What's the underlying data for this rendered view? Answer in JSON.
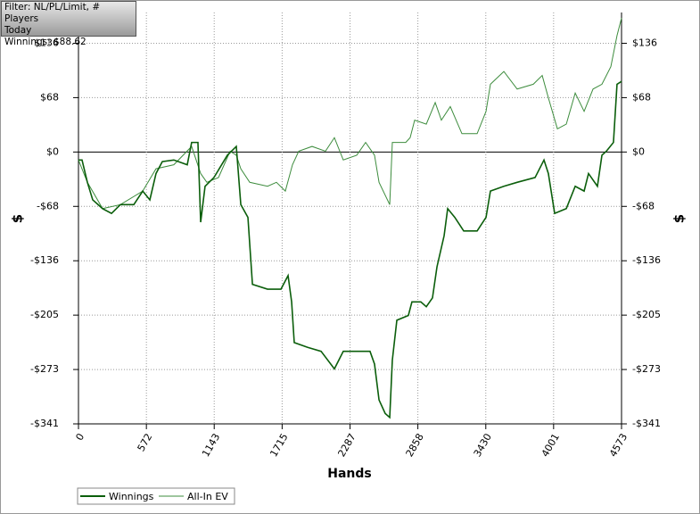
{
  "info": {
    "filter": "Filter: NL/PL/Limit, # Players",
    "period": "Today",
    "winnings": "Winnings: $88.62"
  },
  "chart_data": {
    "type": "line",
    "xlabel": "Hands",
    "ylabel": "$",
    "y2label": "$",
    "xlim": [
      0,
      4573
    ],
    "ylim": [
      -341,
      175
    ],
    "xticks": [
      0,
      572,
      1143,
      1715,
      2287,
      2858,
      3430,
      4001,
      4573
    ],
    "yticks": [
      {
        "value": 136.4,
        "label": "$136"
      },
      {
        "value": 68.2,
        "label": "$68"
      },
      {
        "value": 0,
        "label": "$0"
      },
      {
        "value": -68.2,
        "label": "-$68"
      },
      {
        "value": -136.4,
        "label": "-$136"
      },
      {
        "value": -204.6,
        "label": "-$205"
      },
      {
        "value": -272.8,
        "label": "-$273"
      },
      {
        "value": -341,
        "label": "-$341"
      }
    ],
    "grid": true,
    "series": [
      {
        "name": "Winnings",
        "color": "#0b5e0b",
        "x": [
          0,
          30,
          75,
          120,
          203,
          278,
          353,
          466,
          541,
          601,
          653,
          706,
          803,
          916,
          953,
          1006,
          1029,
          1066,
          1141,
          1254,
          1329,
          1367,
          1427,
          1465,
          1592,
          1705,
          1765,
          1795,
          1817,
          1930,
          2043,
          2155,
          2230,
          2343,
          2455,
          2493,
          2531,
          2583,
          2621,
          2643,
          2681,
          2778,
          2808,
          2883,
          2929,
          2981,
          3019,
          3079,
          3109,
          3169,
          3244,
          3357,
          3432,
          3469,
          3582,
          3694,
          3845,
          3920,
          3957,
          4010,
          4108,
          4183,
          4258,
          4295,
          4370,
          4408,
          4445,
          4505,
          4535,
          4573
        ],
        "values": [
          -10,
          -10,
          -38,
          -60,
          -71,
          -77,
          -66,
          -66,
          -49,
          -60,
          -27,
          -12,
          -10,
          -16,
          12,
          12,
          -88,
          -43,
          -32,
          -4,
          7,
          -66,
          -82,
          -166,
          -172,
          -172,
          -155,
          -188,
          -239,
          -245,
          -250,
          -272,
          -250,
          -250,
          -250,
          -266,
          -311,
          -328,
          -333,
          -261,
          -211,
          -205,
          -188,
          -188,
          -194,
          -183,
          -144,
          -105,
          -71,
          -82,
          -99,
          -99,
          -82,
          -49,
          -43,
          -38,
          -32,
          -10,
          -27,
          -77,
          -71,
          -43,
          -49,
          -27,
          -43,
          -4,
          1,
          12,
          85,
          88.62
        ]
      },
      {
        "name": "All-In EV",
        "color": "#3d8c3d",
        "x": [
          0,
          75,
          203,
          353,
          541,
          653,
          803,
          953,
          1029,
          1081,
          1179,
          1277,
          1329,
          1367,
          1442,
          1592,
          1667,
          1742,
          1802,
          1855,
          1967,
          2080,
          2155,
          2230,
          2343,
          2418,
          2493,
          2531,
          2621,
          2643,
          2756,
          2793,
          2831,
          2929,
          3004,
          3056,
          3131,
          3229,
          3357,
          3432,
          3469,
          3582,
          3694,
          3830,
          3905,
          3957,
          4033,
          4108,
          4183,
          4258,
          4333,
          4408,
          4483,
          4535,
          4573
        ],
        "values": [
          -10,
          -38,
          -71,
          -66,
          -49,
          -21,
          -16,
          7,
          -27,
          -38,
          -32,
          1,
          -4,
          -21,
          -38,
          -43,
          -38,
          -49,
          -16,
          1,
          7,
          1,
          18,
          -10,
          -4,
          12,
          -4,
          -38,
          -66,
          12,
          12,
          18,
          40,
          35,
          62,
          40,
          57,
          23,
          23,
          51,
          85,
          101,
          79,
          85,
          96,
          68,
          29,
          35,
          74,
          51,
          79,
          85,
          107,
          146,
          168
        ]
      }
    ]
  }
}
